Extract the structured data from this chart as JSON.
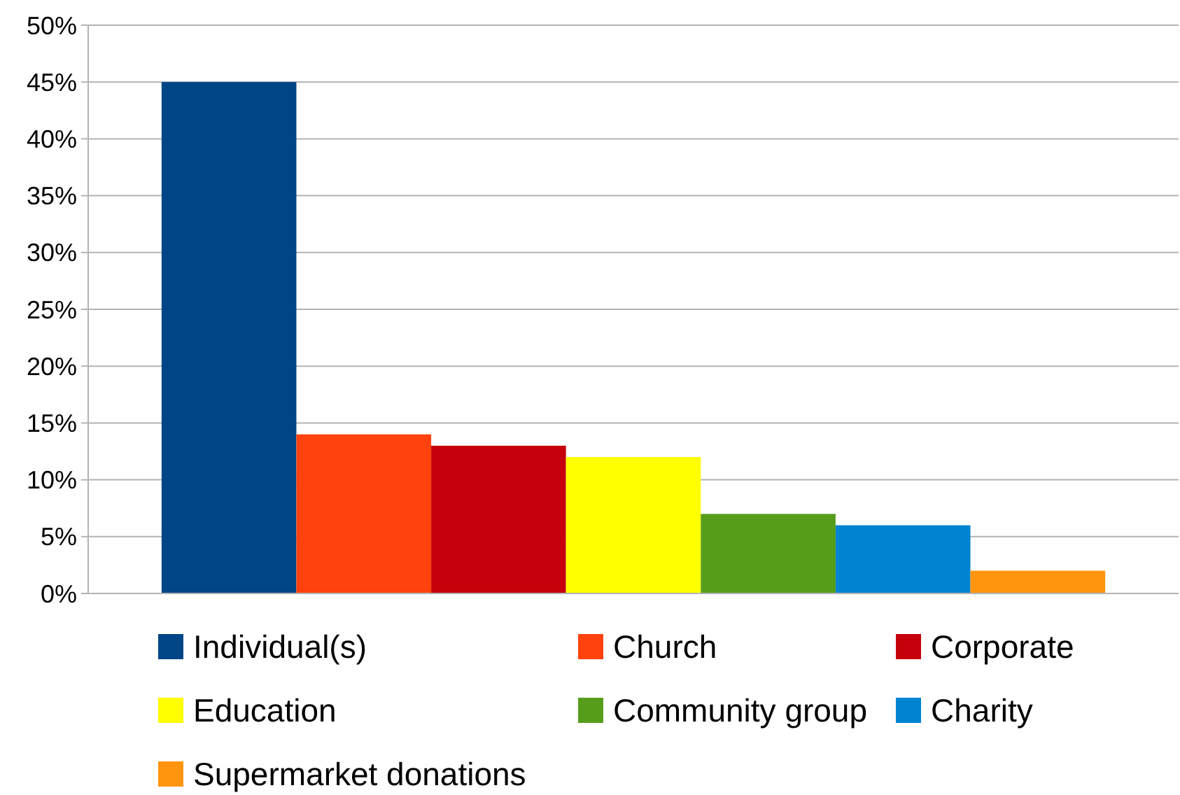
{
  "chart_data": {
    "type": "bar",
    "categories": [
      null
    ],
    "series": [
      {
        "name": "Individual(s)",
        "color": "#004586",
        "values": [
          45
        ]
      },
      {
        "name": "Church",
        "color": "#ff420e",
        "values": [
          14
        ]
      },
      {
        "name": "Corporate",
        "color": "#c5000b",
        "values": [
          13
        ]
      },
      {
        "name": "Education",
        "color": "#ffff00",
        "values": [
          12
        ]
      },
      {
        "name": "Community group",
        "color": "#579d1c",
        "values": [
          7
        ]
      },
      {
        "name": "Charity",
        "color": "#0084d1",
        "values": [
          6
        ]
      },
      {
        "name": "Supermarket donations",
        "color": "#ff950e",
        "values": [
          2
        ]
      }
    ],
    "ylim": [
      0,
      50
    ],
    "yticks": [
      {
        "value": 0,
        "label": "0%"
      },
      {
        "value": 5,
        "label": "5%"
      },
      {
        "value": 10,
        "label": "10%"
      },
      {
        "value": 15,
        "label": "15%"
      },
      {
        "value": 20,
        "label": "20%"
      },
      {
        "value": 25,
        "label": "25%"
      },
      {
        "value": 30,
        "label": "30%"
      },
      {
        "value": 35,
        "label": "35%"
      },
      {
        "value": 40,
        "label": "40%"
      },
      {
        "value": 45,
        "label": "45%"
      },
      {
        "value": 50,
        "label": "50%"
      }
    ],
    "grid": "y",
    "legend": "bottom"
  }
}
